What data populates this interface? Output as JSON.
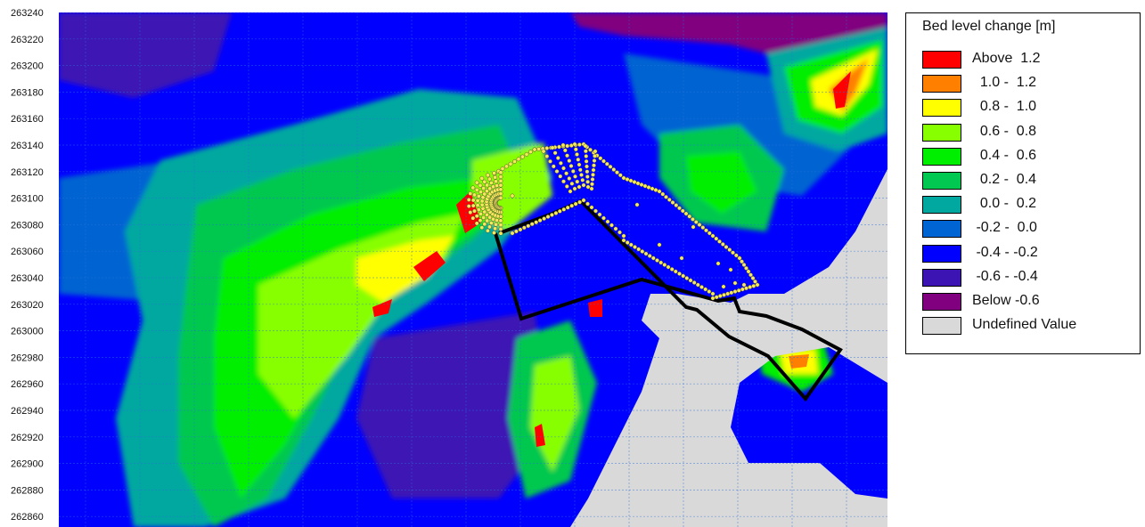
{
  "map": {
    "y_axis": {
      "ticks": [
        "263240",
        "263220",
        "263200",
        "263180",
        "263160",
        "263140",
        "263120",
        "263100",
        "263080",
        "263060",
        "263040",
        "263020",
        "263000",
        "262980",
        "262960",
        "262940",
        "262920",
        "262900",
        "262880",
        "262860"
      ]
    },
    "colors": {
      "undefined_land": "#d9d9d9",
      "outline": "#000000",
      "structure_points": "#f5e85a",
      "grid_lines": "#2b6fd6"
    }
  },
  "legend": {
    "title": "Bed level change [m]",
    "items": [
      {
        "label": "Above  1.2",
        "color": "#ff0000"
      },
      {
        "label": "  1.0 -  1.2",
        "color": "#ff8000"
      },
      {
        "label": "  0.8 -  1.0",
        "color": "#ffff00"
      },
      {
        "label": "  0.6 -  0.8",
        "color": "#88ff00"
      },
      {
        "label": "  0.4 -  0.6",
        "color": "#00ee00"
      },
      {
        "label": "  0.2 -  0.4",
        "color": "#00c850"
      },
      {
        "label": "  0.0 -  0.2",
        "color": "#00a8a0"
      },
      {
        "label": " -0.2 -  0.0",
        "color": "#0064d2"
      },
      {
        "label": " -0.4 - -0.2",
        "color": "#0000ff"
      },
      {
        "label": " -0.6 - -0.4",
        "color": "#3c14b4"
      },
      {
        "label": "Below -0.6",
        "color": "#800080"
      },
      {
        "label": "Undefined Value",
        "color": "#d9d9d9"
      }
    ]
  }
}
